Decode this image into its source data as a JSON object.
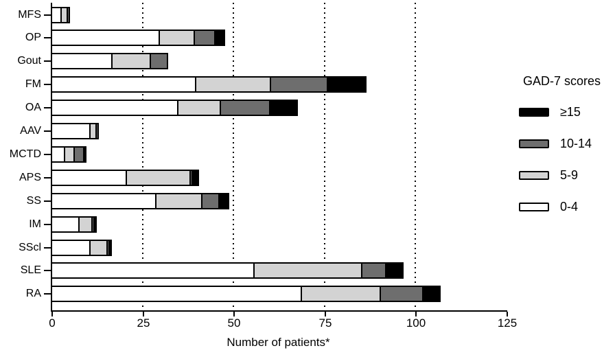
{
  "chart_data": {
    "type": "bar",
    "orientation": "horizontal",
    "stacked": true,
    "title": "",
    "xlabel": "Number of patients*",
    "ylabel": "",
    "categories": [
      "MFS",
      "OP",
      "Gout",
      "FM",
      "OA",
      "AAV",
      "MCTD",
      "APS",
      "SS",
      "IM",
      "SScl",
      "SLE",
      "RA"
    ],
    "series": [
      {
        "name": "0-4",
        "color": "#ffffff",
        "values": [
          3,
          30,
          17,
          40,
          35,
          11,
          4,
          21,
          29,
          8,
          11,
          56,
          69
        ]
      },
      {
        "name": "5-9",
        "color": "#d3d3d3",
        "values": [
          2,
          10,
          11,
          21,
          12,
          2,
          3,
          18,
          13,
          4,
          5,
          30,
          22
        ]
      },
      {
        "name": "10-14",
        "color": "#6e6e6e",
        "values": [
          1,
          6,
          5,
          16,
          14,
          1,
          3,
          1,
          5,
          1,
          1,
          7,
          12
        ]
      },
      {
        "name": "≥15",
        "color": "#000000",
        "values": [
          0,
          3,
          0,
          11,
          8,
          0,
          1,
          2,
          3,
          1,
          1,
          5,
          5
        ]
      }
    ],
    "totals": [
      6,
      49,
      33,
      88,
      69,
      14,
      11,
      42,
      50,
      14,
      18,
      98,
      108
    ],
    "xlim": [
      0,
      125
    ],
    "xticks": [
      "0",
      "25",
      "50",
      "75",
      "100",
      "125"
    ],
    "xtick_values": [
      0,
      25,
      50,
      75,
      100,
      125
    ],
    "gridlines": [
      25,
      50,
      75,
      100
    ],
    "grid_style": "dotted-vertical",
    "legend": {
      "title": "GAD-7 scores",
      "position": "right",
      "entries": [
        {
          "label": "≥15",
          "color": "#000000"
        },
        {
          "label": "10-14",
          "color": "#6e6e6e"
        },
        {
          "label": "5-9",
          "color": "#d3d3d3"
        },
        {
          "label": "0-4",
          "color": "#ffffff"
        }
      ]
    }
  }
}
